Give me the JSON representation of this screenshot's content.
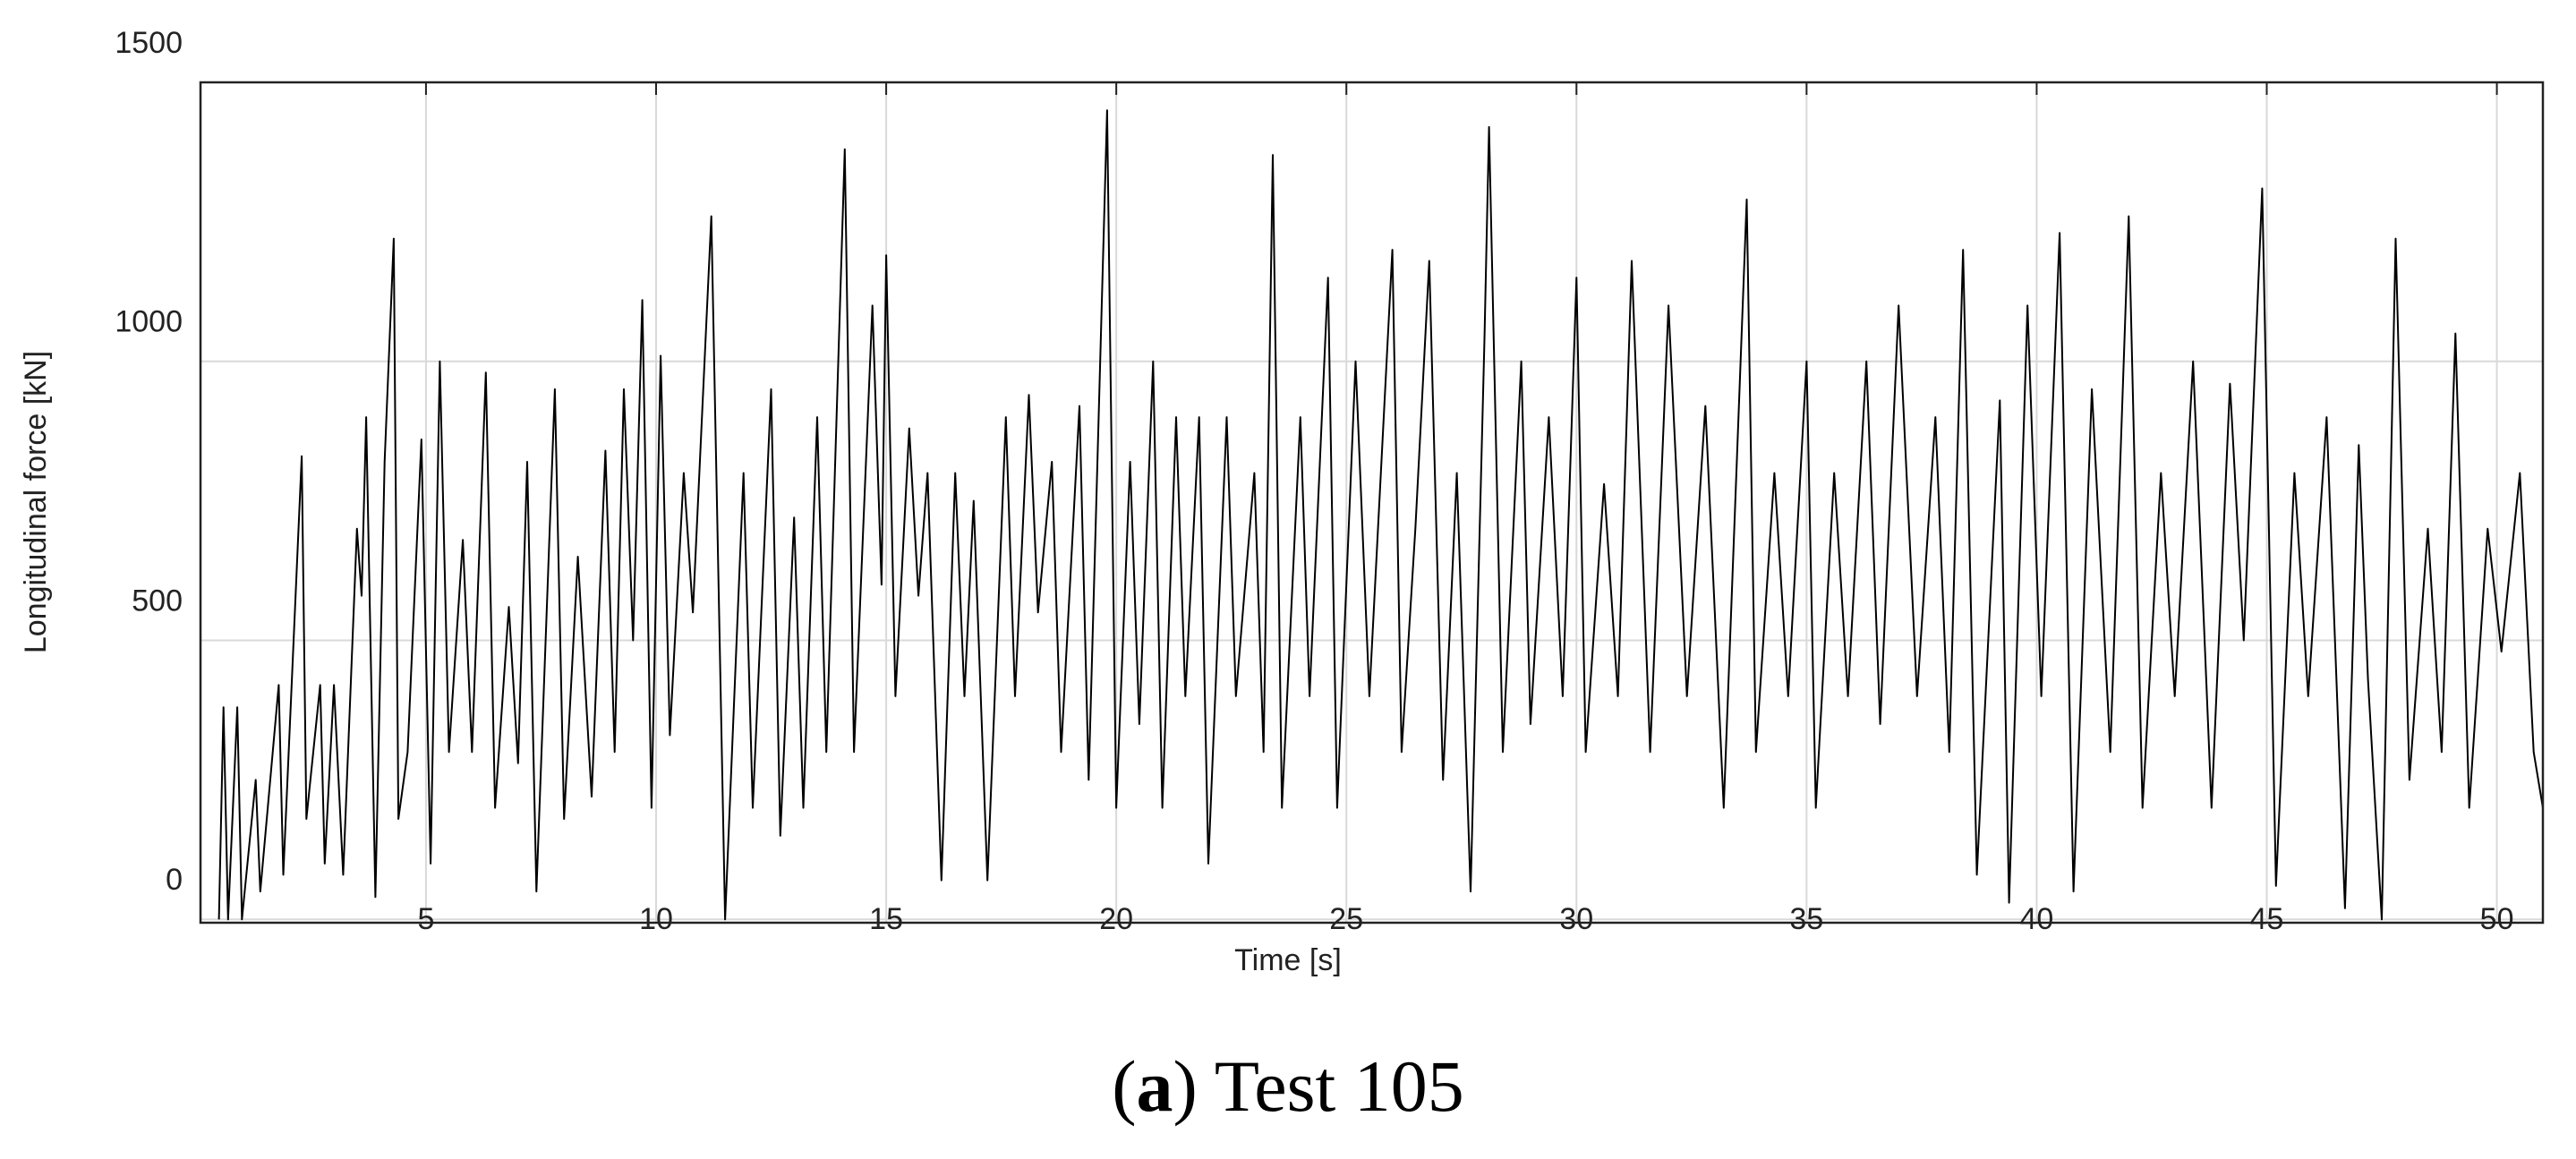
{
  "chart_data": {
    "type": "line",
    "xlabel": "Time [s]",
    "ylabel": "Longitudinal force [kN]",
    "caption": {
      "open": "(",
      "letter": "a",
      "rest": ") Test 105"
    },
    "xlim": [
      0.1,
      51
    ],
    "ylim": [
      -6,
      1500
    ],
    "xticks": [
      5,
      10,
      15,
      20,
      25,
      30,
      35,
      40,
      45,
      50
    ],
    "yticks": [
      0,
      500,
      1000,
      1500
    ],
    "grid": true,
    "series": [
      {
        "color": "#000000",
        "x": [
          0.5,
          0.6,
          0.7,
          0.9,
          1.0,
          1.3,
          1.4,
          1.8,
          1.9,
          2.3,
          2.4,
          2.7,
          2.8,
          3.0,
          3.2,
          3.5,
          3.6,
          3.7,
          3.9,
          4.1,
          4.3,
          4.4,
          4.6,
          4.9,
          5.1,
          5.3,
          5.5,
          5.8,
          6.0,
          6.3,
          6.5,
          6.8,
          7.0,
          7.2,
          7.4,
          7.8,
          8.0,
          8.3,
          8.6,
          8.9,
          9.1,
          9.3,
          9.5,
          9.7,
          9.9,
          10.1,
          10.3,
          10.6,
          10.8,
          11.2,
          11.4,
          11.5,
          11.9,
          12.1,
          12.5,
          12.7,
          13.0,
          13.2,
          13.5,
          13.7,
          14.1,
          14.3,
          14.7,
          14.9,
          15.0,
          15.2,
          15.5,
          15.7,
          15.9,
          16.2,
          16.5,
          16.7,
          16.9,
          17.2,
          17.6,
          17.8,
          18.1,
          18.3,
          18.6,
          18.8,
          19.2,
          19.4,
          19.8,
          20.0,
          20.3,
          20.5,
          20.8,
          21.0,
          21.3,
          21.5,
          21.8,
          22.0,
          22.4,
          22.6,
          23.0,
          23.2,
          23.4,
          23.6,
          24.0,
          24.2,
          24.6,
          24.8,
          25.2,
          25.5,
          26.0,
          26.2,
          26.5,
          26.8,
          27.1,
          27.4,
          27.7,
          28.0,
          28.1,
          28.4,
          28.8,
          29.0,
          29.4,
          29.7,
          30.0,
          30.2,
          30.6,
          30.9,
          31.2,
          31.6,
          32.0,
          32.4,
          32.8,
          33.2,
          33.7,
          33.9,
          34.3,
          34.6,
          35.0,
          35.2,
          35.6,
          35.9,
          36.3,
          36.6,
          37.0,
          37.4,
          37.8,
          38.1,
          38.4,
          38.7,
          39.2,
          39.4,
          39.8,
          40.1,
          40.5,
          40.8,
          41.2,
          41.6,
          42.0,
          42.3,
          42.7,
          43.0,
          43.4,
          43.8,
          44.2,
          44.5,
          44.9,
          45.2,
          45.6,
          45.9,
          46.3,
          46.7,
          47.0,
          47.2,
          47.5,
          47.8,
          48.1,
          48.5,
          48.8,
          49.1,
          49.4,
          49.8,
          50.1,
          50.5,
          50.8,
          51.0
        ],
        "values": [
          0,
          380,
          0,
          380,
          0,
          250,
          50,
          420,
          80,
          830,
          180,
          420,
          100,
          420,
          80,
          700,
          580,
          900,
          40,
          820,
          1220,
          180,
          300,
          860,
          100,
          1000,
          300,
          680,
          300,
          980,
          200,
          560,
          280,
          820,
          50,
          950,
          180,
          650,
          220,
          840,
          300,
          950,
          500,
          1110,
          200,
          1010,
          330,
          800,
          550,
          1260,
          420,
          0,
          800,
          200,
          950,
          150,
          720,
          200,
          900,
          300,
          1380,
          300,
          1100,
          600,
          1190,
          400,
          880,
          580,
          800,
          70,
          800,
          400,
          750,
          70,
          900,
          400,
          940,
          550,
          820,
          300,
          920,
          250,
          1450,
          200,
          820,
          350,
          1000,
          200,
          900,
          400,
          900,
          100,
          900,
          400,
          800,
          300,
          1370,
          200,
          900,
          400,
          1150,
          200,
          1000,
          400,
          1200,
          300,
          700,
          1180,
          250,
          800,
          50,
          1040,
          1420,
          300,
          1000,
          350,
          900,
          400,
          1150,
          300,
          780,
          400,
          1180,
          300,
          1100,
          400,
          920,
          200,
          1290,
          300,
          800,
          400,
          1000,
          200,
          800,
          400,
          1000,
          350,
          1100,
          400,
          900,
          300,
          1200,
          80,
          930,
          30,
          1100,
          400,
          1230,
          50,
          950,
          300,
          1260,
          200,
          800,
          400,
          1000,
          200,
          960,
          500,
          1310,
          60,
          800,
          400,
          900,
          20,
          850,
          430,
          0,
          1220,
          250,
          700,
          300,
          1050,
          200,
          700,
          480,
          800,
          300,
          200
        ]
      }
    ]
  }
}
